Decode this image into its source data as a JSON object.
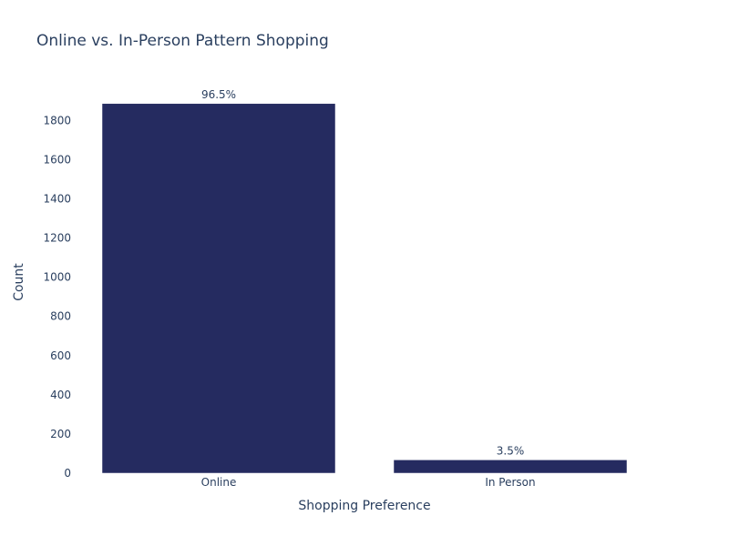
{
  "chart_data": {
    "type": "bar",
    "title": "Online vs. In-Person Pattern Shopping",
    "xlabel": "Shopping Preference",
    "ylabel": "Count",
    "categories": [
      "Online",
      "In Person"
    ],
    "values": [
      1886,
      68
    ],
    "data_labels": [
      "96.5%",
      "3.5%"
    ],
    "ylim": [
      0,
      1950
    ],
    "yticks": [
      0,
      200,
      400,
      600,
      800,
      1000,
      1200,
      1400,
      1600,
      1800
    ],
    "grid": false,
    "legend": "none",
    "bar_color": "#252b60",
    "text_color": "#2a3f5f"
  }
}
